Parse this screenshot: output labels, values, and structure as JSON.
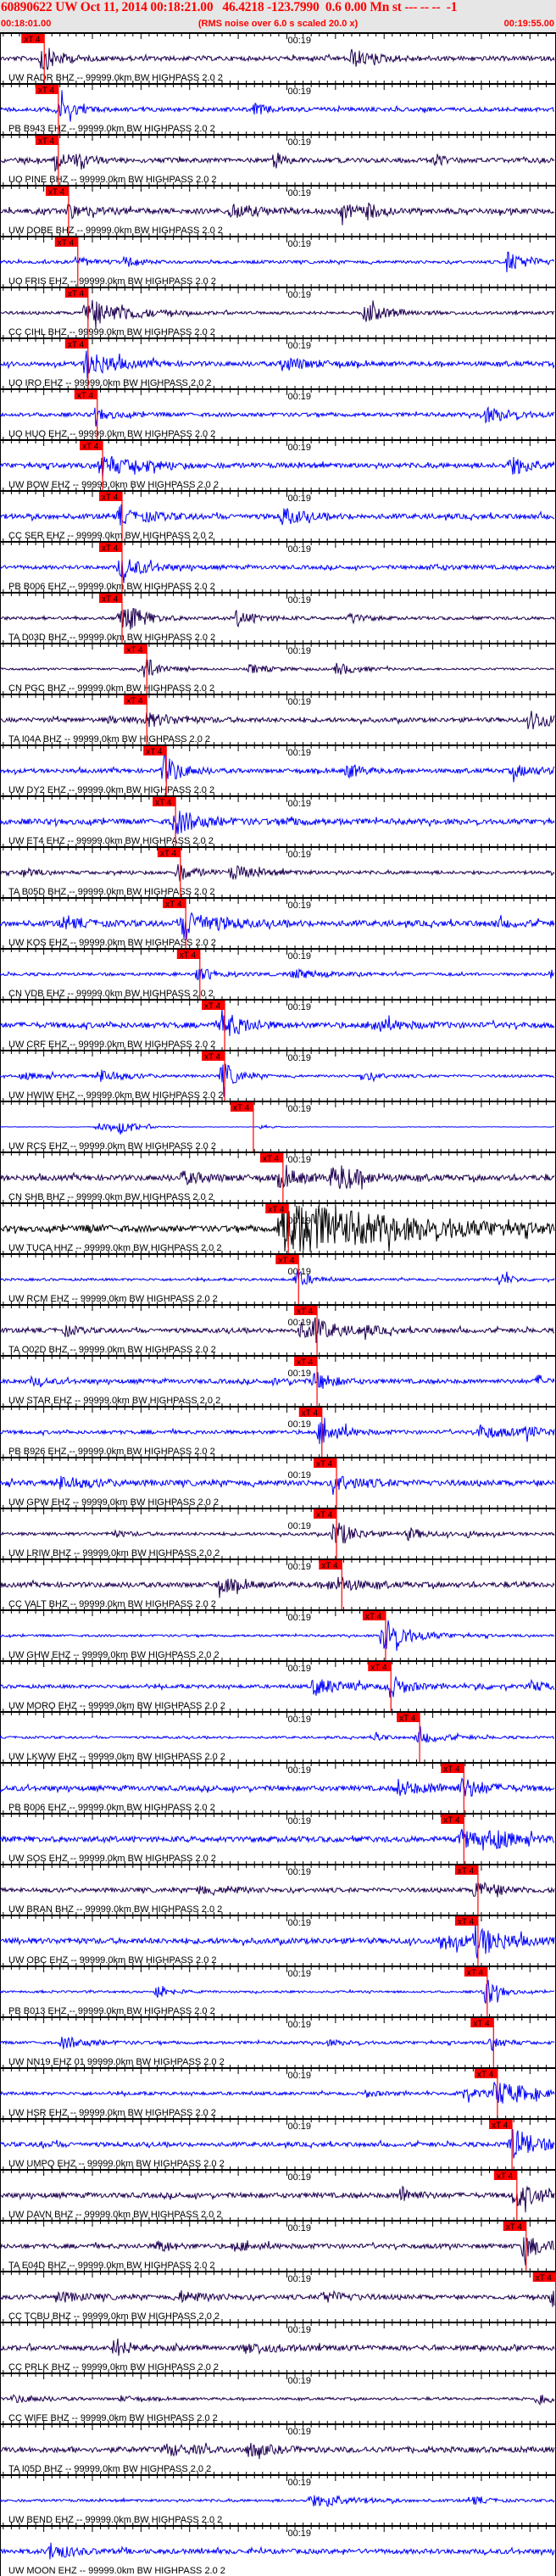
{
  "header": {
    "title": "60890622 UW Oct 11, 2014 00:18:21.00   46.4218 -123.7990  0.6 0.00 Mn st --- -- --  -1",
    "start_time": "00:18:01.00",
    "end_time": "00:19:55.00",
    "note": "(RMS noise over 6.0 s scaled 20.0 x)"
  },
  "axis": {
    "minute_label": "00:19",
    "minute_time": "00:19:00.00",
    "major_tick_seconds": 10
  },
  "colors": {
    "header_text": "#ff0000",
    "header_bg": "#e6e6e6",
    "pick": "#ff0000",
    "EHZ": "#0000ff",
    "BHZ": "#1e0050",
    "HHZ": "#000000",
    "axis": "#000000"
  },
  "pick_label": "xT 4",
  "traces": [
    {
      "label": "UW RADR BHZ -- 99999.0km BW HIGHPASS 2.0 2",
      "pick_time": "00:18:10.1"
    },
    {
      "label": "PB B943 EHZ -- 99999.0km BW HIGHPASS 2.0 2",
      "pick_time": "00:18:13.0"
    },
    {
      "label": "UO PINE BHZ -- 99999.0km BW HIGHPASS 2.0 2",
      "pick_time": "00:18:13.0"
    },
    {
      "label": "UW DOBE BHZ -- 99999.0km BW HIGHPASS 2.0 2",
      "pick_time": "00:18:15.1"
    },
    {
      "label": "UO FRIS EHZ -- 99999.0km BW HIGHPASS 2.0 2",
      "pick_time": "00:18:17.0"
    },
    {
      "label": "CC CIHL BHZ -- 99999.0km BW HIGHPASS 2.0 2",
      "pick_time": "00:18:19.1"
    },
    {
      "label": "UO IRO EHZ -- 99999.0km BW HIGHPASS 2.0 2",
      "pick_time": "00:18:19.1"
    },
    {
      "label": "UO HUO EHZ -- 99999.0km BW HIGHPASS 2.0 2",
      "pick_time": "00:18:21.0"
    },
    {
      "label": "UW BOW EHZ -- 99999.0km BW HIGHPASS 2.0 2",
      "pick_time": "00:18:22.1"
    },
    {
      "label": "CC SER EHZ -- 99999.0km BW HIGHPASS 2.0 2",
      "pick_time": "00:18:26.1"
    },
    {
      "label": "PB B006 EHZ -- 99999.0km BW HIGHPASS 2.0 2",
      "pick_time": "00:18:26.1"
    },
    {
      "label": "TA D03D BHZ -- 99999.0km BW HIGHPASS 2.0 2",
      "pick_time": "00:18:26.1"
    },
    {
      "label": "CN PGC BHZ -- 99999.0km BW HIGHPASS 2.0 2",
      "pick_time": "00:18:31.2"
    },
    {
      "label": "TA I04A BHZ -- 99999.0km BW HIGHPASS 2.0 2",
      "pick_time": "00:18:31.2"
    },
    {
      "label": "UW DY2 EHZ -- 99999.0km BW HIGHPASS 2.0 2",
      "pick_time": "00:18:35.2"
    },
    {
      "label": "UW ET4 EHZ -- 99999.0km BW HIGHPASS 2.0 2",
      "pick_time": "00:18:37.1"
    },
    {
      "label": "TA B05D BHZ -- 99999.0km BW HIGHPASS 2.0 2",
      "pick_time": "00:18:38.1"
    },
    {
      "label": "UW KOS EHZ -- 99999.0km BW HIGHPASS 2.0 2",
      "pick_time": "00:18:39.2"
    },
    {
      "label": "CN VDB EHZ -- 99999.0km BW HIGHPASS 2.0 2",
      "pick_time": "00:18:42.1"
    },
    {
      "label": "UW CRF EHZ -- 99999.0km BW HIGHPASS 2.0 2",
      "pick_time": "00:18:47.2"
    },
    {
      "label": "UW HWIW EHZ -- 99999.0km BW HIGHPASS 2.0 2",
      "pick_time": "00:18:47.2"
    },
    {
      "label": "UW RCS EHZ -- 99999.0km BW HIGHPASS 2.0 2",
      "pick_time": "00:18:53.1"
    },
    {
      "label": "CN SHB BHZ -- 99999.0km BW HIGHPASS 2.0 2",
      "pick_time": "00:18:59.2"
    },
    {
      "label": "UW TUCA HHZ -- 99999.0km BW HIGHPASS 2.0 2",
      "pick_time": "00:19:00.3"
    },
    {
      "label": "UW RCM EHZ -- 99999.0km BW HIGHPASS 2.0 2",
      "pick_time": "00:19:02.4"
    },
    {
      "label": "TA O02D BHZ -- 99999.0km BW HIGHPASS 2.0 2",
      "pick_time": "00:19:06.2"
    },
    {
      "label": "UW STAR EHZ -- 99999.0km BW HIGHPASS 2.0 2",
      "pick_time": "00:19:06.2"
    },
    {
      "label": "PB B926 EHZ -- 99999.0km BW HIGHPASS 2.0 2",
      "pick_time": "00:19:07.2"
    },
    {
      "label": "UW GPW EHZ -- 99999.0km BW HIGHPASS 2.0 2",
      "pick_time": "00:19:10.2"
    },
    {
      "label": "UW LRIW BHZ -- 99999.0km BW HIGHPASS 2.0 2",
      "pick_time": "00:19:10.2"
    },
    {
      "label": "CC VALT BHZ -- 99999.0km BW HIGHPASS 2.0 2",
      "pick_time": "00:19:11.3"
    },
    {
      "label": "UW GHW EHZ -- 99999.0km BW HIGHPASS 2.0 2",
      "pick_time": "00:19:20.3"
    },
    {
      "label": "UW MORO EHZ -- 99999.0km BW HIGHPASS 2.0 2",
      "pick_time": "00:19:21.4"
    },
    {
      "label": "UW LKWW EHZ -- 99999.0km BW HIGHPASS 2.0 2",
      "pick_time": "00:19:27.3"
    },
    {
      "label": "PB B006 EHZ -- 99999.0km BW HIGHPASS 2.0 2",
      "pick_time": "00:19:36.4"
    },
    {
      "label": "UW SOS EHZ -- 99999.0km BW HIGHPASS 2.0 2",
      "pick_time": "00:19:36.4"
    },
    {
      "label": "UW BRAN BHZ -- 99999.0km BW HIGHPASS 2.0 2",
      "pick_time": "00:19:39.3"
    },
    {
      "label": "UW OBC EHZ -- 99999.0km BW HIGHPASS 2.0 2",
      "pick_time": "00:19:39.3"
    },
    {
      "label": "PB B013 EHZ -- 99999.0km BW HIGHPASS 2.0 2",
      "pick_time": "00:19:41.2"
    },
    {
      "label": "UW NN19 EHZ 01 99999.0km BW HIGHPASS 2.0 2",
      "pick_time": "00:19:42.5"
    },
    {
      "label": "UW HSR EHZ -- 99999.0km BW HIGHPASS 2.0 2",
      "pick_time": "00:19:43.3"
    },
    {
      "label": "UW UMPQ EHZ -- 99999.0km BW HIGHPASS 2.0 2",
      "pick_time": "00:19:46.3"
    },
    {
      "label": "UW DAVN BHZ -- 99999.0km BW HIGHPASS 2.0 2",
      "pick_time": "00:19:47.3"
    },
    {
      "label": "TA E04D BHZ -- 99999.0km BW HIGHPASS 2.0 2",
      "pick_time": "00:19:49.2"
    },
    {
      "label": "CC TCBU BHZ -- 99999.0km BW HIGHPASS 2.0 2",
      "pick_time": "00:19:55.3"
    },
    {
      "label": "CC PRLK BHZ -- 99999.0km BW HIGHPASS 2.0 2"
    },
    {
      "label": "CC WIFE BHZ -- 99999.0km BW HIGHPASS 2.0 2"
    },
    {
      "label": "TA I05D BHZ -- 99999.0km BW HIGHPASS 2.0 2"
    },
    {
      "label": "UW BEND EHZ -- 99999.0km BW HIGHPASS 2.0 2"
    },
    {
      "label": "UW MOON EHZ -- 99999.0km BW HIGHPASS 2.0 2"
    }
  ]
}
